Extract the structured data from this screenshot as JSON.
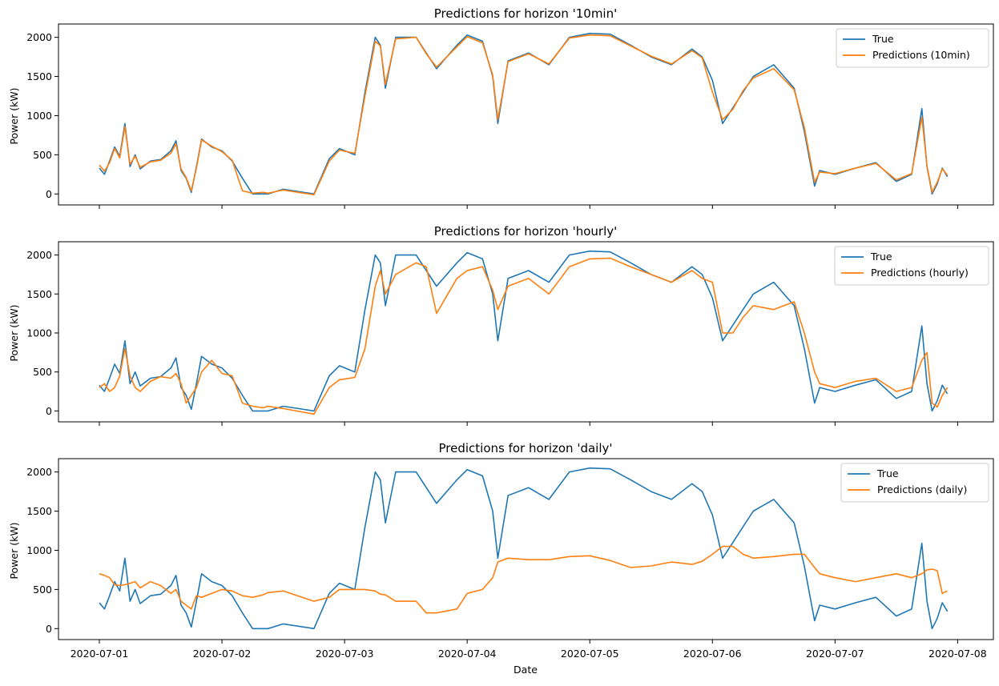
{
  "colors": {
    "true_series": "#1f77b4",
    "prediction_series": "#ff7f0e"
  },
  "x_axis": {
    "label": "Date",
    "ticks": [
      "2020-07-01",
      "2020-07-02",
      "2020-07-03",
      "2020-07-04",
      "2020-07-05",
      "2020-07-06",
      "2020-07-07",
      "2020-07-08"
    ]
  },
  "chart_data": [
    {
      "type": "line",
      "title": "Predictions for horizon '10min'",
      "xlabel": "",
      "ylabel": "Power (kW)",
      "xlim": [
        "2020-06-30T16:00",
        "2020-07-08T07:00"
      ],
      "ylim": [
        -140,
        2170
      ],
      "yticks": [
        0,
        500,
        1000,
        1500,
        2000
      ],
      "grid": false,
      "legend_position": "top-right",
      "x": [
        "2020-07-01T00:00",
        "2020-07-01T01:00",
        "2020-07-01T02:00",
        "2020-07-01T03:00",
        "2020-07-01T04:00",
        "2020-07-01T05:00",
        "2020-07-01T06:00",
        "2020-07-01T07:00",
        "2020-07-01T08:00",
        "2020-07-01T10:00",
        "2020-07-01T12:00",
        "2020-07-01T14:00",
        "2020-07-01T15:00",
        "2020-07-01T16:00",
        "2020-07-01T17:00",
        "2020-07-01T18:00",
        "2020-07-01T19:00",
        "2020-07-01T20:00",
        "2020-07-01T22:00",
        "2020-07-02T00:00",
        "2020-07-02T02:00",
        "2020-07-02T04:00",
        "2020-07-02T06:00",
        "2020-07-02T08:00",
        "2020-07-02T09:00",
        "2020-07-02T12:00",
        "2020-07-02T18:00",
        "2020-07-02T21:00",
        "2020-07-02T23:00",
        "2020-07-03T02:00",
        "2020-07-03T04:00",
        "2020-07-03T06:00",
        "2020-07-03T07:00",
        "2020-07-03T08:00",
        "2020-07-03T10:00",
        "2020-07-03T14:00",
        "2020-07-03T16:00",
        "2020-07-03T18:00",
        "2020-07-03T22:00",
        "2020-07-04T00:00",
        "2020-07-04T03:00",
        "2020-07-04T05:00",
        "2020-07-04T06:00",
        "2020-07-04T08:00",
        "2020-07-04T12:00",
        "2020-07-04T16:00",
        "2020-07-04T20:00",
        "2020-07-05T00:00",
        "2020-07-05T04:00",
        "2020-07-05T08:00",
        "2020-07-05T12:00",
        "2020-07-05T16:00",
        "2020-07-05T20:00",
        "2020-07-05T22:00",
        "2020-07-06T00:00",
        "2020-07-06T02:00",
        "2020-07-06T04:00",
        "2020-07-06T06:00",
        "2020-07-06T08:00",
        "2020-07-06T12:00",
        "2020-07-06T16:00",
        "2020-07-06T18:00",
        "2020-07-06T20:00",
        "2020-07-06T21:00",
        "2020-07-07T00:00",
        "2020-07-07T04:00",
        "2020-07-07T08:00",
        "2020-07-07T12:00",
        "2020-07-07T15:00",
        "2020-07-07T17:00",
        "2020-07-07T18:00",
        "2020-07-07T19:00",
        "2020-07-07T20:00",
        "2020-07-07T21:00",
        "2020-07-07T22:00"
      ],
      "series": [
        {
          "name": "True",
          "color_key": "true_series",
          "values": [
            330,
            250,
            420,
            600,
            480,
            900,
            350,
            500,
            320,
            420,
            440,
            550,
            680,
            300,
            200,
            20,
            350,
            700,
            600,
            550,
            420,
            200,
            0,
            0,
            0,
            60,
            0,
            450,
            580,
            500,
            1300,
            2000,
            1900,
            1350,
            2000,
            2000,
            1800,
            1600,
            1900,
            2030,
            1950,
            1500,
            900,
            1700,
            1800,
            1650,
            2000,
            2050,
            2040,
            1900,
            1750,
            1650,
            1850,
            1750,
            1450,
            900,
            1100,
            1300,
            1500,
            1650,
            1350,
            800,
            100,
            300,
            250,
            330,
            400,
            160,
            250,
            1090,
            350,
            0,
            130,
            330,
            220
          ]
        },
        {
          "name": "Predictions (10min)",
          "color_key": "prediction_series",
          "values": [
            370,
            290,
            400,
            580,
            460,
            860,
            380,
            480,
            340,
            410,
            430,
            520,
            640,
            320,
            210,
            40,
            330,
            690,
            610,
            540,
            430,
            40,
            10,
            20,
            10,
            50,
            -10,
            420,
            560,
            520,
            1250,
            1950,
            1890,
            1400,
            1980,
            2000,
            1790,
            1620,
            1880,
            2010,
            1930,
            1520,
            950,
            1690,
            1790,
            1660,
            1990,
            2030,
            2020,
            1890,
            1760,
            1660,
            1830,
            1740,
            1300,
            950,
            1080,
            1320,
            1480,
            1600,
            1330,
            850,
            150,
            280,
            260,
            330,
            390,
            180,
            260,
            980,
            360,
            20,
            150,
            320,
            240
          ]
        }
      ]
    },
    {
      "type": "line",
      "title": "Predictions for horizon 'hourly'",
      "xlabel": "",
      "ylabel": "Power (kW)",
      "xlim": [
        "2020-06-30T16:00",
        "2020-07-08T07:00"
      ],
      "ylim": [
        -140,
        2170
      ],
      "yticks": [
        0,
        500,
        1000,
        1500,
        2000
      ],
      "grid": false,
      "legend_position": "top-right",
      "x": [
        "2020-07-01T00:00",
        "2020-07-01T01:00",
        "2020-07-01T02:00",
        "2020-07-01T03:00",
        "2020-07-01T04:00",
        "2020-07-01T05:00",
        "2020-07-01T06:00",
        "2020-07-01T07:00",
        "2020-07-01T08:00",
        "2020-07-01T10:00",
        "2020-07-01T12:00",
        "2020-07-01T14:00",
        "2020-07-01T15:00",
        "2020-07-01T16:00",
        "2020-07-01T17:00",
        "2020-07-01T18:00",
        "2020-07-01T19:00",
        "2020-07-01T20:00",
        "2020-07-01T22:00",
        "2020-07-02T00:00",
        "2020-07-02T02:00",
        "2020-07-02T04:00",
        "2020-07-02T06:00",
        "2020-07-02T08:00",
        "2020-07-02T09:00",
        "2020-07-02T12:00",
        "2020-07-02T18:00",
        "2020-07-02T21:00",
        "2020-07-02T23:00",
        "2020-07-03T02:00",
        "2020-07-03T04:00",
        "2020-07-03T06:00",
        "2020-07-03T07:00",
        "2020-07-03T08:00",
        "2020-07-03T10:00",
        "2020-07-03T14:00",
        "2020-07-03T16:00",
        "2020-07-03T18:00",
        "2020-07-03T22:00",
        "2020-07-04T00:00",
        "2020-07-04T03:00",
        "2020-07-04T05:00",
        "2020-07-04T06:00",
        "2020-07-04T08:00",
        "2020-07-04T12:00",
        "2020-07-04T16:00",
        "2020-07-04T20:00",
        "2020-07-05T00:00",
        "2020-07-05T04:00",
        "2020-07-05T08:00",
        "2020-07-05T12:00",
        "2020-07-05T16:00",
        "2020-07-05T20:00",
        "2020-07-05T22:00",
        "2020-07-06T00:00",
        "2020-07-06T02:00",
        "2020-07-06T04:00",
        "2020-07-06T06:00",
        "2020-07-06T08:00",
        "2020-07-06T12:00",
        "2020-07-06T16:00",
        "2020-07-06T18:00",
        "2020-07-06T20:00",
        "2020-07-06T21:00",
        "2020-07-07T00:00",
        "2020-07-07T04:00",
        "2020-07-07T08:00",
        "2020-07-07T12:00",
        "2020-07-07T15:00",
        "2020-07-07T17:00",
        "2020-07-07T18:00",
        "2020-07-07T19:00",
        "2020-07-07T20:00",
        "2020-07-07T21:00",
        "2020-07-07T22:00"
      ],
      "series": [
        {
          "name": "True",
          "color_key": "true_series",
          "values": [
            330,
            250,
            420,
            600,
            480,
            900,
            350,
            500,
            320,
            420,
            440,
            550,
            680,
            300,
            200,
            20,
            350,
            700,
            600,
            550,
            420,
            200,
            0,
            0,
            0,
            60,
            0,
            450,
            580,
            500,
            1300,
            2000,
            1900,
            1350,
            2000,
            2000,
            1800,
            1600,
            1900,
            2030,
            1950,
            1500,
            900,
            1700,
            1800,
            1650,
            2000,
            2050,
            2040,
            1900,
            1750,
            1650,
            1850,
            1750,
            1450,
            900,
            1100,
            1300,
            1500,
            1650,
            1350,
            800,
            100,
            300,
            250,
            330,
            400,
            160,
            250,
            1090,
            350,
            0,
            130,
            330,
            220
          ]
        },
        {
          "name": "Predictions (hourly)",
          "color_key": "prediction_series",
          "values": [
            300,
            350,
            250,
            300,
            450,
            800,
            450,
            300,
            250,
            380,
            440,
            420,
            480,
            350,
            100,
            200,
            300,
            500,
            650,
            480,
            450,
            100,
            60,
            40,
            60,
            30,
            -40,
            300,
            400,
            430,
            800,
            1600,
            1800,
            1500,
            1750,
            1900,
            1850,
            1250,
            1700,
            1800,
            1850,
            1550,
            1300,
            1600,
            1700,
            1500,
            1850,
            1950,
            1960,
            1850,
            1750,
            1650,
            1800,
            1700,
            1650,
            1000,
            1000,
            1200,
            1350,
            1300,
            1400,
            1000,
            500,
            350,
            300,
            380,
            420,
            250,
            300,
            650,
            750,
            100,
            50,
            200,
            300
          ]
        }
      ]
    },
    {
      "type": "line",
      "title": "Predictions for horizon 'daily'",
      "xlabel": "Date",
      "ylabel": "Power (kW)",
      "xlim": [
        "2020-06-30T16:00",
        "2020-07-08T07:00"
      ],
      "ylim": [
        -140,
        2170
      ],
      "yticks": [
        0,
        500,
        1000,
        1500,
        2000
      ],
      "grid": false,
      "legend_position": "top-right",
      "x": [
        "2020-07-01T00:00",
        "2020-07-01T01:00",
        "2020-07-01T02:00",
        "2020-07-01T03:00",
        "2020-07-01T04:00",
        "2020-07-01T05:00",
        "2020-07-01T06:00",
        "2020-07-01T07:00",
        "2020-07-01T08:00",
        "2020-07-01T10:00",
        "2020-07-01T12:00",
        "2020-07-01T14:00",
        "2020-07-01T15:00",
        "2020-07-01T16:00",
        "2020-07-01T17:00",
        "2020-07-01T18:00",
        "2020-07-01T19:00",
        "2020-07-01T20:00",
        "2020-07-01T22:00",
        "2020-07-02T00:00",
        "2020-07-02T02:00",
        "2020-07-02T04:00",
        "2020-07-02T06:00",
        "2020-07-02T08:00",
        "2020-07-02T09:00",
        "2020-07-02T12:00",
        "2020-07-02T18:00",
        "2020-07-02T21:00",
        "2020-07-02T23:00",
        "2020-07-03T02:00",
        "2020-07-03T04:00",
        "2020-07-03T06:00",
        "2020-07-03T07:00",
        "2020-07-03T08:00",
        "2020-07-03T10:00",
        "2020-07-03T14:00",
        "2020-07-03T16:00",
        "2020-07-03T18:00",
        "2020-07-03T22:00",
        "2020-07-04T00:00",
        "2020-07-04T03:00",
        "2020-07-04T05:00",
        "2020-07-04T06:00",
        "2020-07-04T08:00",
        "2020-07-04T12:00",
        "2020-07-04T16:00",
        "2020-07-04T20:00",
        "2020-07-05T00:00",
        "2020-07-05T04:00",
        "2020-07-05T08:00",
        "2020-07-05T12:00",
        "2020-07-05T16:00",
        "2020-07-05T20:00",
        "2020-07-05T22:00",
        "2020-07-06T00:00",
        "2020-07-06T02:00",
        "2020-07-06T04:00",
        "2020-07-06T06:00",
        "2020-07-06T08:00",
        "2020-07-06T12:00",
        "2020-07-06T16:00",
        "2020-07-06T18:00",
        "2020-07-06T20:00",
        "2020-07-06T21:00",
        "2020-07-07T00:00",
        "2020-07-07T04:00",
        "2020-07-07T08:00",
        "2020-07-07T12:00",
        "2020-07-07T15:00",
        "2020-07-07T17:00",
        "2020-07-07T18:00",
        "2020-07-07T19:00",
        "2020-07-07T20:00",
        "2020-07-07T21:00",
        "2020-07-07T22:00"
      ],
      "series": [
        {
          "name": "True",
          "color_key": "true_series",
          "values": [
            330,
            250,
            420,
            600,
            480,
            900,
            350,
            500,
            320,
            420,
            440,
            550,
            680,
            300,
            200,
            20,
            350,
            700,
            600,
            550,
            420,
            200,
            0,
            0,
            0,
            60,
            0,
            450,
            580,
            500,
            1300,
            2000,
            1900,
            1350,
            2000,
            2000,
            1800,
            1600,
            1900,
            2030,
            1950,
            1500,
            900,
            1700,
            1800,
            1650,
            2000,
            2050,
            2040,
            1900,
            1750,
            1650,
            1850,
            1750,
            1450,
            900,
            1100,
            1300,
            1500,
            1650,
            1350,
            800,
            100,
            300,
            250,
            330,
            400,
            160,
            250,
            1090,
            350,
            0,
            130,
            330,
            220
          ]
        },
        {
          "name": "Predictions (daily)",
          "color_key": "prediction_series",
          "values": [
            700,
            680,
            650,
            560,
            550,
            560,
            580,
            600,
            520,
            600,
            550,
            450,
            500,
            350,
            300,
            250,
            420,
            400,
            450,
            500,
            480,
            420,
            400,
            430,
            460,
            480,
            350,
            400,
            500,
            500,
            500,
            480,
            440,
            430,
            350,
            350,
            200,
            200,
            250,
            450,
            500,
            650,
            850,
            900,
            880,
            880,
            920,
            930,
            870,
            780,
            800,
            850,
            820,
            860,
            950,
            1050,
            1050,
            950,
            900,
            920,
            950,
            950,
            780,
            700,
            650,
            600,
            650,
            700,
            650,
            700,
            750,
            760,
            740,
            450,
            480
          ]
        }
      ]
    }
  ]
}
